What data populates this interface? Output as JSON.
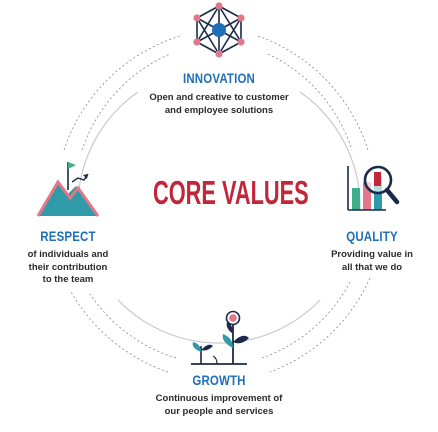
{
  "center": {
    "title": "CORE VALUES"
  },
  "values": {
    "innovation": {
      "title": "INNOVATION",
      "line1": "Open and creative to customer",
      "line2": "and employee solutions"
    },
    "respect": {
      "title": "RESPECT",
      "line1": "of individuals and",
      "line2": "their contribution",
      "line3": "to the team"
    },
    "quality": {
      "title": "QUALITY",
      "line1": "Providing value in",
      "line2": "all that we do"
    },
    "growth": {
      "title": "GROWTH",
      "line1": "Continuous improvement of",
      "line2": "our people and services"
    }
  },
  "colors": {
    "blue": "#1f6fb8",
    "red": "#c0273b",
    "dark": "#2b2b2b",
    "teal": "#2f9aa8",
    "pink": "#e0788a",
    "navy": "#1b2a4a",
    "green": "#3fae8a"
  },
  "icons": {
    "innovation": "network-hexagon-icon",
    "respect": "mountain-flag-icon",
    "quality": "magnifier-chart-icon",
    "growth": "sprouting-plants-icon"
  }
}
